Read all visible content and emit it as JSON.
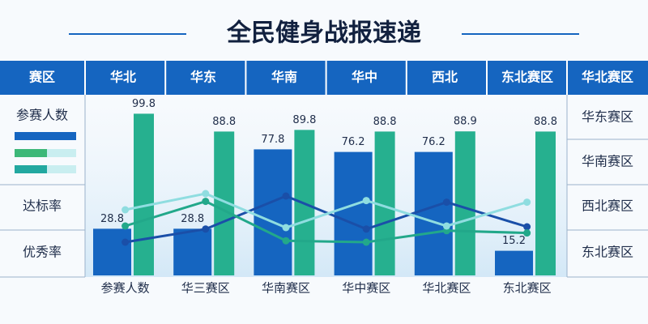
{
  "chart_data": {
    "type": "bar",
    "title": "全民健身战报速递",
    "header": [
      "赛区",
      "华北",
      "华东",
      "华南",
      "华中",
      "西北",
      "东北赛区",
      "华北赛区"
    ],
    "left_labels": [
      "参赛人数",
      "达标率",
      "优秀率"
    ],
    "right_labels": [
      "华东赛区",
      "华南赛区",
      "西北赛区",
      "东北赛区"
    ],
    "categories": [
      "参赛人数",
      "华三赛区",
      "华南赛区",
      "华中赛区",
      "华北赛区",
      "东北赛区"
    ],
    "ylim": [
      0,
      100
    ],
    "series": [
      {
        "color": "#1565c0",
        "values": [
          28.8,
          28.8,
          77.8,
          76.2,
          76.2,
          15.2
        ]
      },
      {
        "color": "#26b08f",
        "values": [
          99.8,
          88.8,
          89.8,
          88.8,
          88.9,
          88.8
        ]
      }
    ],
    "lines": [
      {
        "color": "#1a4fa8",
        "values": [
          20.5,
          28.6,
          49,
          28.6,
          45.2,
          30
        ]
      },
      {
        "color": "#22a88a",
        "values": [
          30.5,
          45.7,
          21.4,
          20.5,
          27.6,
          26.2
        ]
      },
      {
        "color": "#8fdde0",
        "values": [
          40.5,
          50.5,
          29.5,
          46.2,
          30.5,
          45.2
        ]
      }
    ]
  }
}
